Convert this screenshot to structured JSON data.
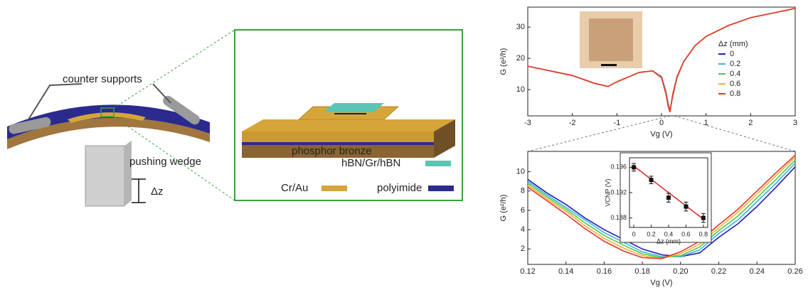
{
  "diagram": {
    "counter_supports": "counter supports",
    "pushing_wedge": "pushing wedge",
    "dz": "Δz",
    "phosphor_bronze": "phosphor bronze",
    "hbn_gr_hbn": "hBN/Gr/hBN",
    "cr_au": "Cr/Au",
    "polyimide": "polyimide"
  },
  "chart_data": [
    {
      "type": "line",
      "x_label": "Vg (V)",
      "y_label": "G (e²/h)",
      "legend_title": "Δz (mm)",
      "x": [
        -3,
        -2.5,
        -2,
        -1.5,
        -1.2,
        -1,
        -0.5,
        -0.2,
        0,
        0.1,
        0.15,
        0.19,
        0.25,
        0.35,
        0.5,
        0.75,
        1,
        1.5,
        2,
        2.5,
        3
      ],
      "series": [
        {
          "name": "0",
          "color": "#1f1fb4",
          "values": [
            17.5,
            16,
            14.5,
            12,
            11,
            12.5,
            15.5,
            16,
            14.2,
            9.4,
            5.6,
            3.4,
            7.6,
            13.8,
            19,
            24,
            27,
            30.5,
            33,
            34.5,
            36
          ]
        },
        {
          "name": "0.2",
          "color": "#3ab0e8",
          "values": [
            17.5,
            16,
            14.5,
            12,
            11,
            12.5,
            15.5,
            16,
            14.1,
            9.2,
            5.3,
            3.2,
            7.8,
            13.9,
            19,
            24,
            27,
            30.5,
            33,
            34.5,
            36
          ]
        },
        {
          "name": "0.4",
          "color": "#4dc94d",
          "values": [
            17.5,
            16,
            14.5,
            12,
            11,
            12.5,
            15.5,
            16,
            14,
            9,
            5,
            3,
            8,
            14,
            19,
            24,
            27,
            30.5,
            33,
            34.5,
            36
          ]
        },
        {
          "name": "0.6",
          "color": "#f0b030",
          "values": [
            17.5,
            16,
            14.5,
            12,
            11,
            12.5,
            15.5,
            16,
            13.9,
            8.8,
            4.8,
            2.9,
            8.2,
            14.1,
            19,
            24,
            27,
            30.5,
            33,
            34.5,
            36
          ]
        },
        {
          "name": "0.8",
          "color": "#e8352a",
          "values": [
            17.5,
            16,
            14.5,
            12,
            11,
            12.5,
            15.5,
            16,
            13.8,
            8.6,
            4.6,
            2.8,
            8.4,
            14.2,
            19,
            24,
            27,
            30.5,
            33,
            34.5,
            36
          ]
        }
      ],
      "xlim": [
        -3,
        3
      ],
      "xticks": [
        -3,
        -2,
        -1,
        0,
        1,
        2,
        3
      ],
      "ylim": [
        1.6,
        36.4
      ],
      "yticks": [
        10,
        20,
        30
      ]
    },
    {
      "type": "line",
      "x_label": "Vg (V)",
      "y_label": "G (e²/h)",
      "x": [
        0.12,
        0.13,
        0.14,
        0.15,
        0.16,
        0.17,
        0.18,
        0.19,
        0.2,
        0.21,
        0.22,
        0.23,
        0.24,
        0.25,
        0.26
      ],
      "series": [
        {
          "name": "0",
          "color": "#1f1fb4",
          "values": [
            9.2,
            7.8,
            6.6,
            5.2,
            4.0,
            3.0,
            2.0,
            1.4,
            1.2,
            1.6,
            3.2,
            4.6,
            6.4,
            8.4,
            10.5
          ]
        },
        {
          "name": "0.2",
          "color": "#3ab0e8",
          "values": [
            9.0,
            7.6,
            6.3,
            5.0,
            3.7,
            2.7,
            1.7,
            1.2,
            1.2,
            1.9,
            3.6,
            5.0,
            6.9,
            8.8,
            10.9
          ]
        },
        {
          "name": "0.4",
          "color": "#4dc94d",
          "values": [
            8.8,
            7.4,
            6.1,
            4.7,
            3.4,
            2.4,
            1.5,
            1.1,
            1.3,
            2.2,
            3.9,
            5.4,
            7.3,
            9.2,
            11.2
          ]
        },
        {
          "name": "0.6",
          "color": "#f0b030",
          "values": [
            8.6,
            7.2,
            5.9,
            4.4,
            3.1,
            2.1,
            1.3,
            1.0,
            1.5,
            2.5,
            4.2,
            5.8,
            7.7,
            9.6,
            11.5
          ]
        },
        {
          "name": "0.8",
          "color": "#e8352a",
          "values": [
            8.4,
            7.0,
            5.6,
            4.1,
            2.8,
            1.8,
            1.1,
            1.0,
            1.7,
            2.8,
            4.5,
            6.1,
            8.0,
            9.9,
            11.7
          ]
        }
      ],
      "xlim": [
        0.12,
        0.26
      ],
      "xticks": [
        0.12,
        0.14,
        0.16,
        0.18,
        {
          "value": 0.2,
          "label": "0.20"
        },
        0.22,
        0.24,
        0.26
      ],
      "ylim": [
        0.4,
        12.1
      ],
      "yticks": [
        2,
        4,
        6,
        8,
        10
      ]
    },
    {
      "type": "scatter",
      "x_label": "Δz (mm)",
      "y_label": "VCNP (V)",
      "x": [
        0,
        0.2,
        0.4,
        0.6,
        0.8
      ],
      "values": [
        0.196,
        0.194,
        0.1912,
        0.1898,
        0.188
      ],
      "errors": [
        0.0006,
        0.0006,
        0.0007,
        0.0007,
        0.0007
      ],
      "color": "#111111",
      "fit": {
        "color": "#d62728",
        "x": [
          0,
          0.8
        ],
        "values": [
          0.1962,
          0.1878
        ]
      },
      "xlim": [
        -0.05,
        0.85
      ],
      "xticks": [
        0,
        0.2,
        0.4,
        0.6,
        0.8
      ],
      "ylim": [
        0.1865,
        0.1975
      ],
      "yticks": [
        0.188,
        0.192,
        0.196
      ]
    }
  ]
}
